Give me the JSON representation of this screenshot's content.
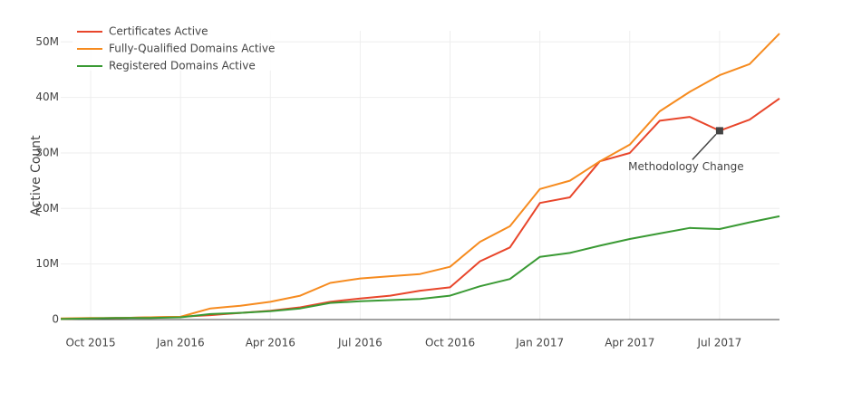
{
  "chart_data": {
    "type": "line",
    "y_label": "Active Count",
    "x": [
      "2015-09",
      "2015-10",
      "2015-11",
      "2015-12",
      "2016-01",
      "2016-02",
      "2016-03",
      "2016-04",
      "2016-05",
      "2016-06",
      "2016-07",
      "2016-08",
      "2016-09",
      "2016-10",
      "2016-11",
      "2016-12",
      "2017-01",
      "2017-02",
      "2017-03",
      "2017-04",
      "2017-05",
      "2017-06",
      "2017-07",
      "2017-08",
      "2017-09"
    ],
    "series": [
      {
        "name": "Certificates Active",
        "color": "#e8462b",
        "values": [
          100000,
          200000,
          300000,
          400000,
          500000,
          800000,
          1200000,
          1600000,
          2200000,
          3200000,
          3800000,
          4300000,
          5200000,
          5800000,
          10500000,
          13000000,
          21000000,
          22000000,
          28500000,
          30000000,
          35800000,
          36500000,
          34000000,
          36000000,
          39800000
        ]
      },
      {
        "name": "Fully-Qualified Domains Active",
        "color": "#f68b1f",
        "values": [
          200000,
          300000,
          300000,
          400000,
          500000,
          2000000,
          2500000,
          3200000,
          4300000,
          6600000,
          7400000,
          7800000,
          8200000,
          9500000,
          14000000,
          16800000,
          23500000,
          25000000,
          28500000,
          31500000,
          37500000,
          41000000,
          44000000,
          46000000,
          51500000
        ]
      },
      {
        "name": "Registered Domains Active",
        "color": "#3a9a34",
        "values": [
          100000,
          200000,
          300000,
          300000,
          400000,
          1000000,
          1200000,
          1500000,
          2000000,
          3000000,
          3300000,
          3500000,
          3700000,
          4300000,
          6000000,
          7300000,
          11300000,
          12000000,
          13300000,
          14500000,
          15500000,
          16500000,
          16300000,
          17500000,
          18600000
        ]
      }
    ],
    "xlim": [
      "2015-09",
      "2017-09"
    ],
    "xticks": [
      {
        "value": "2015-10",
        "label": "Oct 2015"
      },
      {
        "value": "2016-01",
        "label": "Jan 2016"
      },
      {
        "value": "2016-04",
        "label": "Apr 2016"
      },
      {
        "value": "2016-07",
        "label": "Jul 2016"
      },
      {
        "value": "2016-10",
        "label": "Oct 2016"
      },
      {
        "value": "2017-01",
        "label": "Jan 2017"
      },
      {
        "value": "2017-04",
        "label": "Apr 2017"
      },
      {
        "value": "2017-07",
        "label": "Jul 2017"
      }
    ],
    "ylim": [
      0,
      52000000
    ],
    "yticks": [
      0,
      {
        "value": 10000000,
        "label": "10M"
      },
      {
        "value": 20000000,
        "label": "20M"
      },
      {
        "value": 30000000,
        "label": "30M"
      },
      {
        "value": 40000000,
        "label": "40M"
      },
      {
        "value": 50000000,
        "label": "50M"
      }
    ],
    "grid": true,
    "legend": "top-left",
    "annotation": {
      "text": "Methodology Change",
      "x": "2017-07",
      "y": 34000000
    }
  }
}
